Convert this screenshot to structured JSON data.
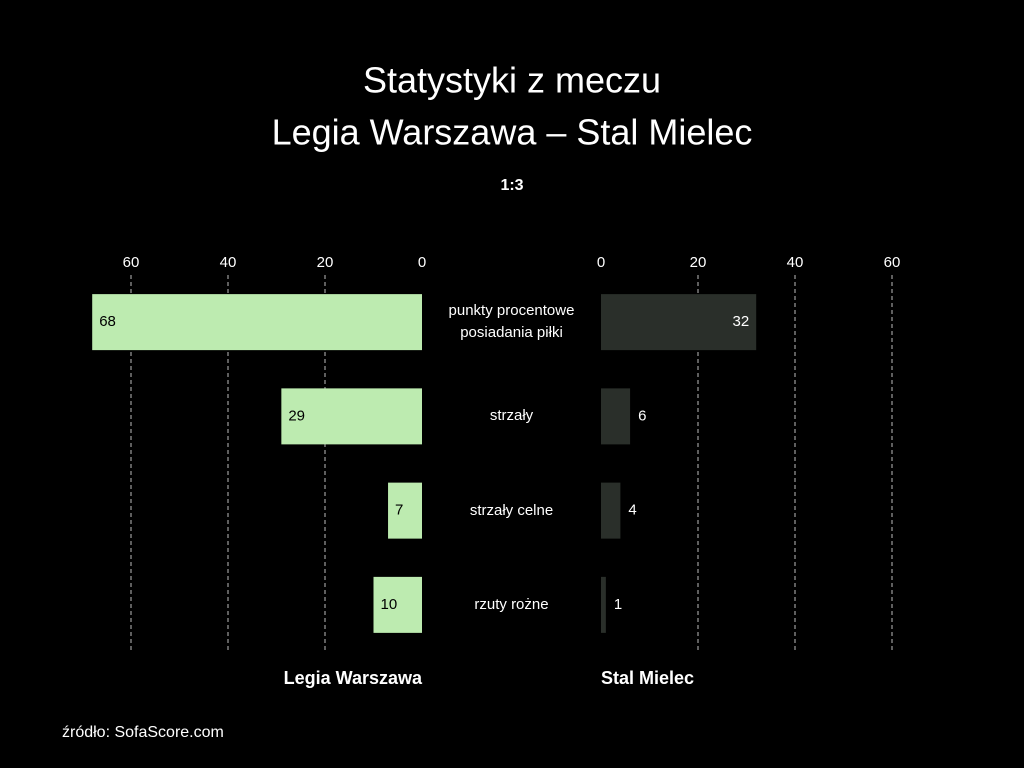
{
  "chart_data": {
    "type": "butterfly",
    "title": "Statystyki z meczu",
    "subtitle": "Legia Warszawa – Stal Mielec",
    "score": "1:3",
    "source": "źródło: SofaScore.com",
    "categories": [
      "punkty procentowe posiadania piłki",
      "strzały",
      "strzały celne",
      "rzuty rożne"
    ],
    "series": [
      {
        "name": "Legia Warszawa",
        "color": "#bdebb0",
        "values": [
          68,
          29,
          7,
          10
        ]
      },
      {
        "name": "Stal Mielec",
        "color": "#2a2f2a",
        "values": [
          32,
          6,
          4,
          1
        ]
      }
    ],
    "xlim": [
      0,
      70
    ],
    "xticks": [
      0,
      20,
      40,
      60
    ],
    "grid": true
  }
}
